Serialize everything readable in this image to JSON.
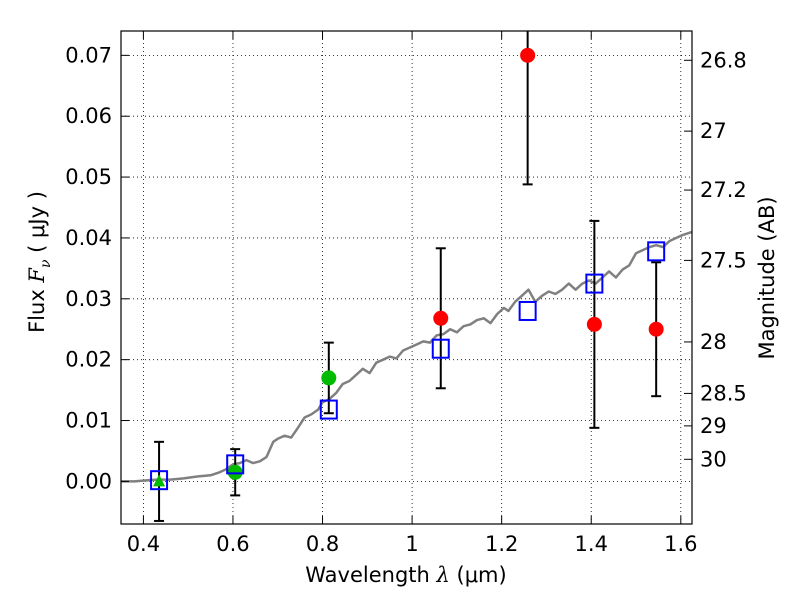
{
  "chart_data": {
    "type": "scatter",
    "xlabel": {
      "prefix": "Wavelength  ",
      "symbol": "λ",
      "unit": " (μm)"
    },
    "ylabel": {
      "prefix": "Flux  ",
      "symbol": "F",
      "subscript": "ν",
      "unit": "  ( μJy )"
    },
    "y2label": "Magnitude (AB)",
    "xlim": [
      0.35,
      1.625
    ],
    "ylim": [
      -0.007,
      0.074
    ],
    "x_ticks": [
      0.4,
      0.6,
      0.8,
      1.0,
      1.2,
      1.4,
      1.6
    ],
    "x_tick_labels": [
      "0.4",
      "0.6",
      "0.8",
      "1",
      "1.2",
      "1.4",
      "1.6"
    ],
    "y_ticks": [
      0.0,
      0.01,
      0.02,
      0.03,
      0.04,
      0.05,
      0.06,
      0.07
    ],
    "y_tick_labels": [
      "0.00",
      "0.01",
      "0.02",
      "0.03",
      "0.04",
      "0.05",
      "0.06",
      "0.07"
    ],
    "y2_ticks": [
      26.8,
      27.0,
      27.2,
      27.5,
      28.0,
      28.5,
      29.0,
      30.0
    ],
    "y2_tick_labels": [
      "26.8",
      "27",
      "27.2",
      "27.5",
      "28",
      "28.5",
      "29",
      "30"
    ],
    "grid": true,
    "grid_style": "dotted",
    "colors": {
      "model": "#808080",
      "filled_green": "#00bb00",
      "filled_red": "#ff0000",
      "open_square": "#0000ff",
      "errorbar": "#000000"
    },
    "series": [
      {
        "kind": "line",
        "x": [
          0.35,
          0.38,
          0.41,
          0.43,
          0.46,
          0.49,
          0.52,
          0.55,
          0.57,
          0.585,
          0.6,
          0.615,
          0.63,
          0.645,
          0.66,
          0.675,
          0.69,
          0.7,
          0.715,
          0.73,
          0.745,
          0.76,
          0.775,
          0.79,
          0.8,
          0.815,
          0.83,
          0.845,
          0.86,
          0.875,
          0.89,
          0.905,
          0.92,
          0.935,
          0.95,
          0.965,
          0.98,
          0.995,
          1.01,
          1.025,
          1.04,
          1.055,
          1.07,
          1.085,
          1.1,
          1.115,
          1.13,
          1.145,
          1.16,
          1.175,
          1.19,
          1.205,
          1.215,
          1.23,
          1.245,
          1.26,
          1.275,
          1.29,
          1.305,
          1.32,
          1.335,
          1.35,
          1.365,
          1.38,
          1.395,
          1.41,
          1.425,
          1.44,
          1.455,
          1.47,
          1.485,
          1.5,
          1.515,
          1.53,
          1.545,
          1.56,
          1.575,
          1.59,
          1.605,
          1.625
        ],
        "y": [
          0.0,
          0.0,
          0.0002,
          0.0003,
          0.0003,
          0.0005,
          0.0008,
          0.001,
          0.0015,
          0.002,
          0.0028,
          0.003,
          0.0035,
          0.003,
          0.0033,
          0.004,
          0.0065,
          0.007,
          0.0075,
          0.0072,
          0.0088,
          0.0105,
          0.011,
          0.0118,
          0.013,
          0.0135,
          0.0145,
          0.016,
          0.0165,
          0.0175,
          0.0185,
          0.0178,
          0.0195,
          0.02,
          0.0205,
          0.0202,
          0.0215,
          0.022,
          0.0225,
          0.023,
          0.0228,
          0.024,
          0.0242,
          0.025,
          0.0245,
          0.0255,
          0.0258,
          0.0265,
          0.0268,
          0.026,
          0.0275,
          0.0285,
          0.028,
          0.0295,
          0.0305,
          0.0315,
          0.0295,
          0.0305,
          0.0312,
          0.0308,
          0.0315,
          0.0325,
          0.0315,
          0.0325,
          0.033,
          0.0325,
          0.0335,
          0.0345,
          0.0335,
          0.0348,
          0.0355,
          0.0375,
          0.038,
          0.0385,
          0.0388,
          0.0385,
          0.0395,
          0.04,
          0.0405,
          0.041
        ]
      },
      {
        "kind": "filled_circle",
        "color": "green",
        "points": [
          {
            "x": 0.435,
            "y": 0.0,
            "yerr": 0.0065,
            "marker": "triangle"
          },
          {
            "x": 0.605,
            "y": 0.0015,
            "yerr": 0.0038
          },
          {
            "x": 0.814,
            "y": 0.017,
            "yerr": 0.0058
          }
        ]
      },
      {
        "kind": "filled_circle",
        "color": "red",
        "points": [
          {
            "x": 1.064,
            "y": 0.0268,
            "yerr": 0.0115
          },
          {
            "x": 1.258,
            "y": 0.07,
            "yerr": 0.0212
          },
          {
            "x": 1.407,
            "y": 0.0258,
            "yerr": 0.017
          },
          {
            "x": 1.545,
            "y": 0.025,
            "yerr": 0.011
          }
        ]
      },
      {
        "kind": "open_square",
        "color": "blue",
        "points": [
          {
            "x": 0.435,
            "y": 0.0002
          },
          {
            "x": 0.605,
            "y": 0.0028
          },
          {
            "x": 0.814,
            "y": 0.0118
          },
          {
            "x": 1.064,
            "y": 0.0218
          },
          {
            "x": 1.258,
            "y": 0.028
          },
          {
            "x": 1.407,
            "y": 0.0325
          },
          {
            "x": 1.545,
            "y": 0.0378
          }
        ]
      }
    ]
  }
}
